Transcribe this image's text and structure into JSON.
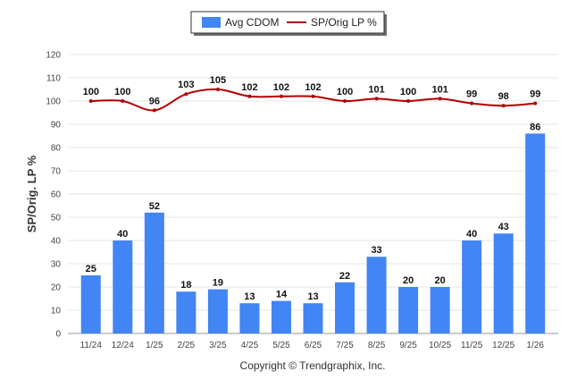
{
  "chart_data": {
    "type": "bar",
    "categories": [
      "11/24",
      "12/24",
      "1/25",
      "2/25",
      "3/25",
      "4/25",
      "5/25",
      "6/25",
      "7/25",
      "8/25",
      "9/25",
      "10/25",
      "11/25",
      "12/25",
      "1/26"
    ],
    "series": [
      {
        "name": "Avg CDOM",
        "kind": "bar",
        "color": "#4285f4",
        "values": [
          25,
          40,
          52,
          18,
          19,
          13,
          14,
          13,
          22,
          33,
          20,
          20,
          40,
          43,
          86
        ]
      },
      {
        "name": "SP/Orig LP %",
        "kind": "line",
        "color": "#b40000",
        "values": [
          100,
          100,
          96,
          103,
          105,
          102,
          102,
          102,
          100,
          101,
          100,
          101,
          99,
          98,
          99
        ]
      }
    ],
    "ylabel": "SP/Orig. LP %",
    "xlabel": "",
    "ylim": [
      0,
      120
    ],
    "yticks": [
      0,
      10,
      20,
      30,
      40,
      50,
      60,
      70,
      80,
      90,
      100,
      110,
      120
    ],
    "grid": true,
    "legend_position": "top-center",
    "footer": "Copyright © Trendgraphix, Inc."
  }
}
